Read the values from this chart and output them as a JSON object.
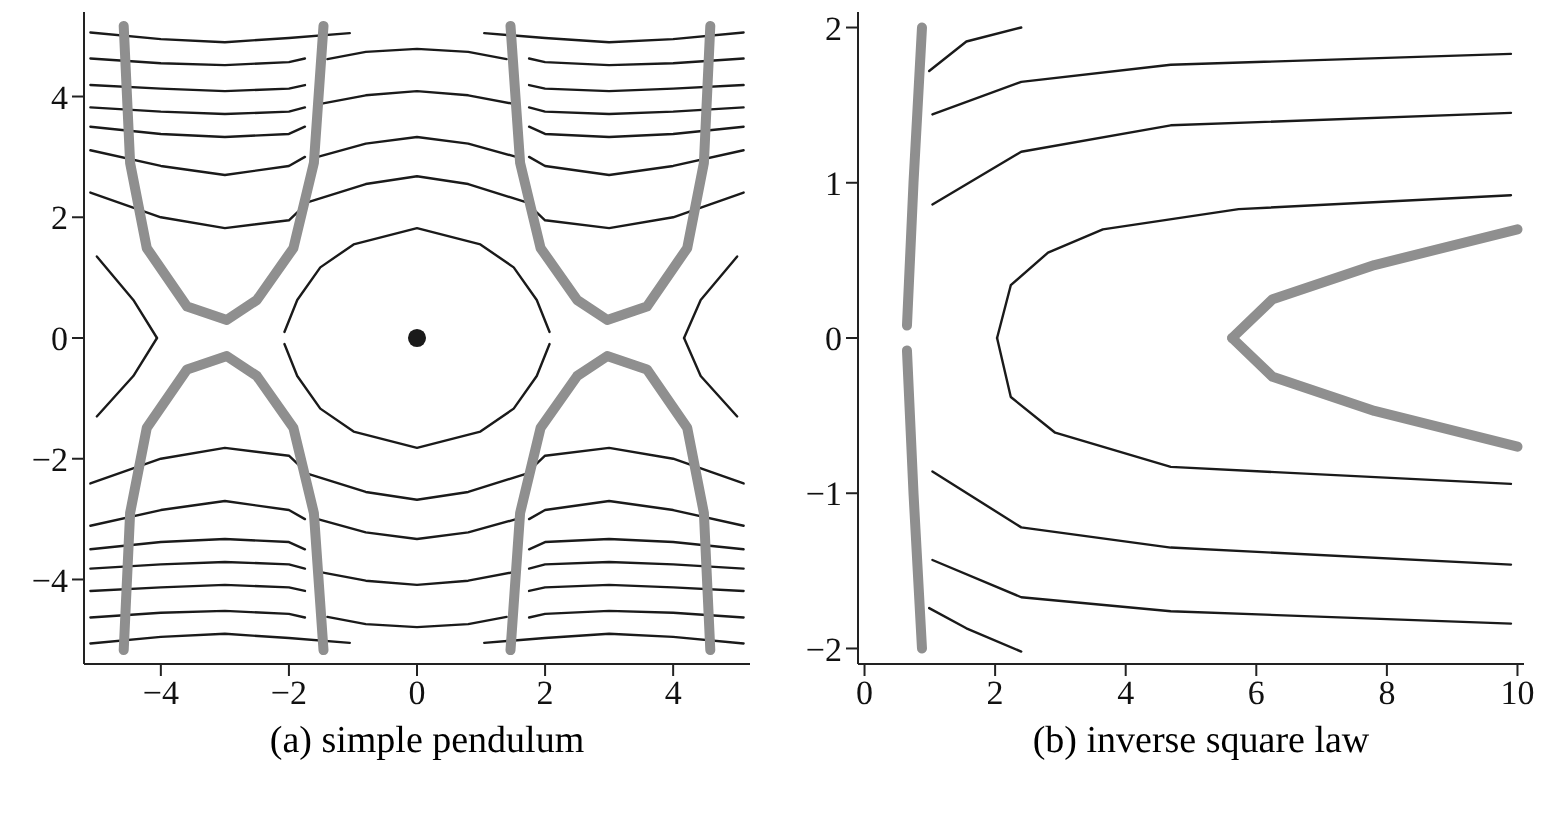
{
  "chart_data": [
    {
      "type": "line",
      "title": "(a) simple pendulum",
      "xlim": [
        -5.2,
        5.2
      ],
      "ylim": [
        -5.4,
        5.4
      ],
      "xticks": [
        -4,
        -2,
        0,
        2,
        4
      ],
      "yticks": [
        -4,
        -2,
        0,
        2,
        4
      ],
      "series": [
        {
          "color": "#1a1a1a",
          "x": [
            -1.4,
            -0.8,
            0,
            0.8,
            1.4
          ],
          "values": [
            4.62,
            4.74,
            4.79,
            4.74,
            4.62
          ]
        },
        {
          "color": "#1a1a1a",
          "x": [
            -1.55,
            -0.8,
            0,
            0.8,
            1.55
          ],
          "values": [
            3.87,
            4.02,
            4.09,
            4.02,
            3.87
          ]
        },
        {
          "color": "#1a1a1a",
          "x": [
            -1.55,
            -0.8,
            0,
            0.8,
            1.55
          ],
          "values": [
            3.0,
            3.22,
            3.33,
            3.22,
            3.0
          ]
        },
        {
          "color": "#1a1a1a",
          "x": [
            -5.1,
            -4,
            -3,
            -2,
            -1.7,
            -0.8,
            0,
            0.8,
            1.7,
            2,
            3,
            4,
            5.1
          ],
          "values": [
            2.41,
            2.0,
            1.82,
            1.95,
            2.25,
            2.55,
            2.68,
            2.55,
            2.25,
            1.95,
            1.82,
            2.0,
            2.41
          ]
        },
        {
          "color": "#1a1a1a",
          "x": [
            -1.4,
            -0.8,
            0,
            0.8,
            1.4
          ],
          "values": [
            -4.62,
            -4.74,
            -4.79,
            -4.74,
            -4.62
          ]
        },
        {
          "color": "#1a1a1a",
          "x": [
            -1.55,
            -0.8,
            0,
            0.8,
            1.55
          ],
          "values": [
            -3.87,
            -4.02,
            -4.09,
            -4.02,
            -3.87
          ]
        },
        {
          "color": "#1a1a1a",
          "x": [
            -1.55,
            -0.8,
            0,
            0.8,
            1.55
          ],
          "values": [
            -3.0,
            -3.22,
            -3.33,
            -3.22,
            -3.0
          ]
        },
        {
          "color": "#1a1a1a",
          "x": [
            -5.1,
            -4,
            -3,
            -2,
            -1.7,
            -0.8,
            0,
            0.8,
            1.7,
            2,
            3,
            4,
            5.1
          ],
          "values": [
            -2.41,
            -2.0,
            -1.82,
            -1.95,
            -2.25,
            -2.55,
            -2.68,
            -2.55,
            -2.25,
            -1.95,
            -1.82,
            -2.0,
            -2.41
          ]
        },
        {
          "color": "#1a1a1a",
          "x": [
            -2.07,
            -1.87,
            -1.51,
            -0.99,
            0,
            0.99,
            1.51,
            1.87,
            2.07
          ],
          "values": [
            0.1,
            0.63,
            1.17,
            1.55,
            1.82,
            1.55,
            1.17,
            0.63,
            0.1
          ]
        },
        {
          "color": "#1a1a1a",
          "x": [
            -2.07,
            -1.87,
            -1.51,
            -0.99,
            0,
            0.99,
            1.51,
            1.87,
            2.07
          ],
          "values": [
            -0.1,
            -0.63,
            -1.17,
            -1.55,
            -1.82,
            -1.55,
            -1.17,
            -0.63,
            -0.1
          ]
        },
        {
          "color": "#1a1a1a",
          "x": [
            -5.0,
            -4.43,
            -4.06
          ],
          "values": [
            1.35,
            0.63,
            0
          ]
        },
        {
          "color": "#1a1a1a",
          "x": [
            -5.0,
            -4.43,
            -4.06
          ],
          "values": [
            -1.3,
            -0.63,
            0
          ]
        },
        {
          "color": "#1a1a1a",
          "x": [
            4.17,
            4.43,
            5.0
          ],
          "values": [
            0,
            0.63,
            1.35
          ]
        },
        {
          "color": "#1a1a1a",
          "x": [
            4.17,
            4.43,
            5.0
          ],
          "values": [
            0,
            -0.63,
            -1.3
          ]
        },
        {
          "color": "#1a1a1a",
          "x": [
            -5.1,
            -4,
            -3,
            -2,
            -1.05
          ],
          "values": [
            5.06,
            4.95,
            4.9,
            4.97,
            5.05
          ]
        },
        {
          "color": "#1a1a1a",
          "x": [
            -5.1,
            -4,
            -3,
            -2,
            -1.75
          ],
          "values": [
            4.63,
            4.55,
            4.52,
            4.57,
            4.63
          ]
        },
        {
          "color": "#1a1a1a",
          "x": [
            -5.1,
            -4,
            -3,
            -2,
            -1.75
          ],
          "values": [
            4.19,
            4.13,
            4.09,
            4.13,
            4.19
          ]
        },
        {
          "color": "#1a1a1a",
          "x": [
            -5.1,
            -4,
            -3,
            -2,
            -1.75
          ],
          "values": [
            3.82,
            3.75,
            3.71,
            3.75,
            3.82
          ]
        },
        {
          "color": "#1a1a1a",
          "x": [
            -5.1,
            -4,
            -3,
            -2,
            -1.75
          ],
          "values": [
            3.5,
            3.38,
            3.33,
            3.38,
            3.5
          ]
        },
        {
          "color": "#1a1a1a",
          "x": [
            -5.1,
            -4,
            -3,
            -2,
            -1.75
          ],
          "values": [
            3.11,
            2.85,
            2.7,
            2.85,
            3.0
          ]
        },
        {
          "color": "#1a1a1a",
          "x": [
            1.05,
            2,
            3,
            4,
            5.1
          ],
          "values": [
            5.05,
            4.97,
            4.9,
            4.95,
            5.06
          ]
        },
        {
          "color": "#1a1a1a",
          "x": [
            1.75,
            2,
            3,
            4,
            5.1
          ],
          "values": [
            4.63,
            4.57,
            4.52,
            4.55,
            4.63
          ]
        },
        {
          "color": "#1a1a1a",
          "x": [
            1.75,
            2,
            3,
            4,
            5.1
          ],
          "values": [
            4.19,
            4.13,
            4.09,
            4.13,
            4.19
          ]
        },
        {
          "color": "#1a1a1a",
          "x": [
            1.75,
            2,
            3,
            4,
            5.1
          ],
          "values": [
            3.82,
            3.75,
            3.71,
            3.75,
            3.82
          ]
        },
        {
          "color": "#1a1a1a",
          "x": [
            1.75,
            2,
            3,
            4,
            5.1
          ],
          "values": [
            3.5,
            3.38,
            3.33,
            3.38,
            3.5
          ]
        },
        {
          "color": "#1a1a1a",
          "x": [
            1.75,
            2,
            3,
            4,
            5.1
          ],
          "values": [
            3.0,
            2.85,
            2.7,
            2.85,
            3.11
          ]
        },
        {
          "color": "#1a1a1a",
          "x": [
            -5.1,
            -4,
            -3,
            -2,
            -1.05
          ],
          "values": [
            -5.06,
            -4.95,
            -4.9,
            -4.97,
            -5.05
          ]
        },
        {
          "color": "#1a1a1a",
          "x": [
            -5.1,
            -4,
            -3,
            -2,
            -1.75
          ],
          "values": [
            -4.63,
            -4.55,
            -4.52,
            -4.57,
            -4.63
          ]
        },
        {
          "color": "#1a1a1a",
          "x": [
            -5.1,
            -4,
            -3,
            -2,
            -1.75
          ],
          "values": [
            -4.19,
            -4.13,
            -4.09,
            -4.13,
            -4.19
          ]
        },
        {
          "color": "#1a1a1a",
          "x": [
            -5.1,
            -4,
            -3,
            -2,
            -1.75
          ],
          "values": [
            -3.82,
            -3.75,
            -3.71,
            -3.75,
            -3.82
          ]
        },
        {
          "color": "#1a1a1a",
          "x": [
            -5.1,
            -4,
            -3,
            -2,
            -1.75
          ],
          "values": [
            -3.5,
            -3.38,
            -3.33,
            -3.38,
            -3.5
          ]
        },
        {
          "color": "#1a1a1a",
          "x": [
            -5.1,
            -4,
            -3,
            -2,
            -1.75
          ],
          "values": [
            -3.11,
            -2.85,
            -2.7,
            -2.85,
            -3.0
          ]
        },
        {
          "color": "#1a1a1a",
          "x": [
            1.05,
            2,
            3,
            4,
            5.1
          ],
          "values": [
            -5.05,
            -4.97,
            -4.9,
            -4.95,
            -5.06
          ]
        },
        {
          "color": "#1a1a1a",
          "x": [
            1.75,
            2,
            3,
            4,
            5.1
          ],
          "values": [
            -4.63,
            -4.57,
            -4.52,
            -4.55,
            -4.63
          ]
        },
        {
          "color": "#1a1a1a",
          "x": [
            1.75,
            2,
            3,
            4,
            5.1
          ],
          "values": [
            -4.19,
            -4.13,
            -4.09,
            -4.13,
            -4.19
          ]
        },
        {
          "color": "#1a1a1a",
          "x": [
            1.75,
            2,
            3,
            4,
            5.1
          ],
          "values": [
            -3.82,
            -3.75,
            -3.71,
            -3.75,
            -3.82
          ]
        },
        {
          "color": "#1a1a1a",
          "x": [
            1.75,
            2,
            3,
            4,
            5.1
          ],
          "values": [
            -3.5,
            -3.38,
            -3.33,
            -3.38,
            -3.5
          ]
        },
        {
          "color": "#1a1a1a",
          "x": [
            1.75,
            2,
            3,
            4,
            5.1
          ],
          "values": [
            -3.0,
            -2.85,
            -2.7,
            -2.85,
            -3.11
          ]
        },
        {
          "color": "#8f8f8f",
          "x": [
            -4.58,
            -4.48,
            -4.22,
            -3.59,
            -2.97,
            -2.5,
            -1.93,
            -1.61,
            -1.46
          ],
          "values": [
            5.17,
            2.9,
            1.49,
            0.52,
            0.3,
            0.63,
            1.49,
            2.9,
            5.17
          ]
        },
        {
          "color": "#8f8f8f",
          "x": [
            -4.58,
            -4.48,
            -4.22,
            -3.59,
            -2.97,
            -2.5,
            -1.93,
            -1.61,
            -1.46
          ],
          "values": [
            -5.17,
            -2.9,
            -1.49,
            -0.52,
            -0.3,
            -0.63,
            -1.49,
            -2.9,
            -5.17
          ]
        },
        {
          "color": "#8f8f8f",
          "x": [
            1.46,
            1.61,
            1.93,
            2.5,
            2.97,
            3.59,
            4.22,
            4.48,
            4.58
          ],
          "values": [
            5.17,
            2.9,
            1.49,
            0.63,
            0.3,
            0.52,
            1.49,
            2.9,
            5.17
          ]
        },
        {
          "color": "#8f8f8f",
          "x": [
            1.46,
            1.61,
            1.93,
            2.5,
            2.97,
            3.59,
            4.22,
            4.48,
            4.58
          ],
          "values": [
            -5.17,
            -2.9,
            -1.49,
            -0.63,
            -0.3,
            -0.52,
            -1.49,
            -2.9,
            -5.17
          ]
        },
        {
          "type": "scatter",
          "marker": "circle",
          "color": "#1a1a1a",
          "x": [
            0
          ],
          "values": [
            0
          ]
        }
      ]
    },
    {
      "type": "line",
      "title": "(b) inverse square law",
      "xlim": [
        -0.1,
        10.1
      ],
      "ylim": [
        -2.1,
        2.1
      ],
      "xticks": [
        0,
        2,
        4,
        6,
        8,
        10
      ],
      "yticks": [
        -2,
        -1,
        0,
        1,
        2
      ],
      "series": [
        {
          "color": "#1a1a1a",
          "x": [
            0.99,
            1.56,
            2.4
          ],
          "values": [
            1.72,
            1.91,
            2.0
          ]
        },
        {
          "color": "#1a1a1a",
          "x": [
            1.04,
            2.4,
            4.69,
            9.9
          ],
          "values": [
            1.44,
            1.65,
            1.76,
            1.83
          ]
        },
        {
          "color": "#1a1a1a",
          "x": [
            1.04,
            2.4,
            4.69,
            9.9
          ],
          "values": [
            0.86,
            1.2,
            1.37,
            1.45
          ]
        },
        {
          "color": "#1a1a1a",
          "x": [
            2.03,
            2.24,
            2.81,
            3.65,
            5.73,
            9.9
          ],
          "values": [
            0,
            0.34,
            0.55,
            0.7,
            0.83,
            0.92
          ]
        },
        {
          "color": "#1a1a1a",
          "x": [
            2.03,
            2.24,
            2.92,
            4.69,
            9.9
          ],
          "values": [
            0,
            -0.38,
            -0.61,
            -0.83,
            -0.94
          ]
        },
        {
          "color": "#1a1a1a",
          "x": [
            1.04,
            2.4,
            4.69,
            9.9
          ],
          "values": [
            -0.86,
            -1.22,
            -1.35,
            -1.46
          ]
        },
        {
          "color": "#1a1a1a",
          "x": [
            1.04,
            2.4,
            4.69,
            9.9
          ],
          "values": [
            -1.43,
            -1.67,
            -1.76,
            -1.84
          ]
        },
        {
          "color": "#1a1a1a",
          "x": [
            0.99,
            1.56,
            2.4
          ],
          "values": [
            -1.74,
            -1.87,
            -2.02
          ]
        },
        {
          "color": "#8f8f8f",
          "x": [
            0.65,
            0.75,
            0.88
          ],
          "values": [
            0.08,
            1,
            2.0
          ]
        },
        {
          "color": "#8f8f8f",
          "x": [
            0.65,
            0.75,
            0.88
          ],
          "values": [
            -0.08,
            -1,
            -2.0
          ]
        },
        {
          "color": "#8f8f8f",
          "x": [
            5.63,
            6.25,
            7.81,
            10
          ],
          "values": [
            0,
            0.25,
            0.47,
            0.7
          ]
        },
        {
          "color": "#8f8f8f",
          "x": [
            5.63,
            6.25,
            7.81,
            10
          ],
          "values": [
            0,
            -0.25,
            -0.47,
            -0.7
          ]
        }
      ]
    }
  ]
}
